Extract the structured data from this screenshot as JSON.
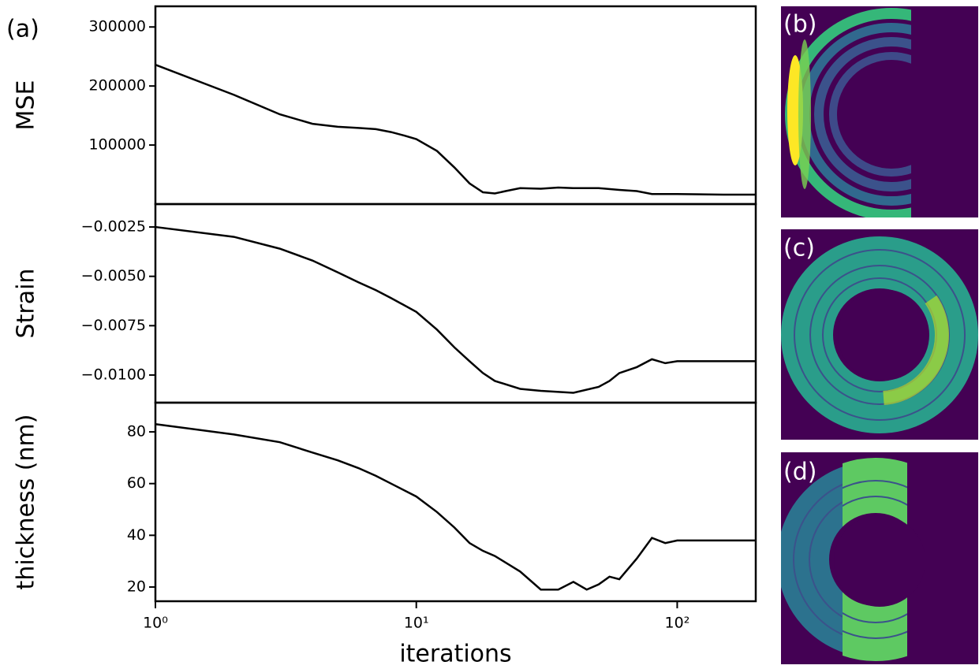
{
  "chart_data": [
    {
      "type": "line",
      "label": "(a)",
      "ylabel": "MSE",
      "log_x": true,
      "color": "#000000",
      "x": [
        1,
        2,
        3,
        4,
        5,
        6,
        7,
        8,
        9,
        10,
        12,
        14,
        16,
        18,
        20,
        22,
        25,
        30,
        35,
        40,
        50,
        60,
        70,
        80,
        100,
        150,
        200
      ],
      "values": [
        236000,
        185000,
        152000,
        136000,
        131000,
        129000,
        127000,
        122000,
        116000,
        110000,
        90000,
        62000,
        35000,
        20000,
        18000,
        22000,
        27000,
        26000,
        28000,
        27000,
        27000,
        24000,
        22000,
        17000,
        17000,
        16000,
        16000
      ],
      "xlim": [
        1,
        200
      ],
      "ylim": [
        0,
        335000
      ],
      "yticks": [
        100000,
        200000,
        300000
      ]
    },
    {
      "type": "line",
      "ylabel": "Strain",
      "log_x": true,
      "color": "#000000",
      "x": [
        1,
        2,
        3,
        4,
        5,
        6,
        7,
        8,
        10,
        12,
        14,
        16,
        18,
        20,
        25,
        30,
        40,
        50,
        55,
        60,
        70,
        80,
        90,
        100,
        150,
        200
      ],
      "values": [
        -0.0025,
        -0.003,
        -0.0036,
        -0.0042,
        -0.0048,
        -0.0053,
        -0.0057,
        -0.0061,
        -0.0068,
        -0.0077,
        -0.0086,
        -0.0093,
        -0.0099,
        -0.0103,
        -0.0107,
        -0.0108,
        -0.0109,
        -0.0106,
        -0.0103,
        -0.0099,
        -0.0096,
        -0.0092,
        -0.0094,
        -0.0093,
        -0.0093,
        -0.0093
      ],
      "xlim": [
        1,
        200
      ],
      "ylim": [
        -0.0114,
        -0.00134
      ],
      "yticks": [
        {
          "value": -0.0025,
          "label": "−0.0025"
        },
        {
          "value": -0.005,
          "label": "−0.0050"
        },
        {
          "value": -0.0075,
          "label": "−0.0075"
        },
        {
          "value": -0.01,
          "label": "−0.0100"
        }
      ]
    },
    {
      "type": "line",
      "ylabel": "thickness (nm)",
      "xlabel": "iterations",
      "log_x": true,
      "color": "#000000",
      "x": [
        1,
        2,
        3,
        4,
        5,
        6,
        7,
        8,
        10,
        12,
        14,
        16,
        18,
        20,
        25,
        30,
        35,
        40,
        45,
        50,
        55,
        60,
        70,
        80,
        90,
        100,
        150,
        200
      ],
      "values": [
        83,
        79,
        76,
        72,
        69,
        66,
        63,
        60,
        55,
        49,
        43,
        37,
        34,
        32,
        26,
        19,
        19,
        22,
        19,
        21,
        24,
        23,
        31,
        39,
        37,
        38,
        38,
        38
      ],
      "xlim": [
        1,
        200
      ],
      "ylim": [
        14.5,
        91.3
      ],
      "yticks": [
        20,
        40,
        60,
        80
      ],
      "xticks": [
        {
          "value": 1,
          "label": "10⁰"
        },
        {
          "value": 10,
          "label": "10¹"
        },
        {
          "value": 100,
          "label": "10²"
        }
      ]
    }
  ],
  "images": [
    {
      "label": "(b)"
    },
    {
      "label": "(c)"
    },
    {
      "label": "(d)"
    }
  ]
}
